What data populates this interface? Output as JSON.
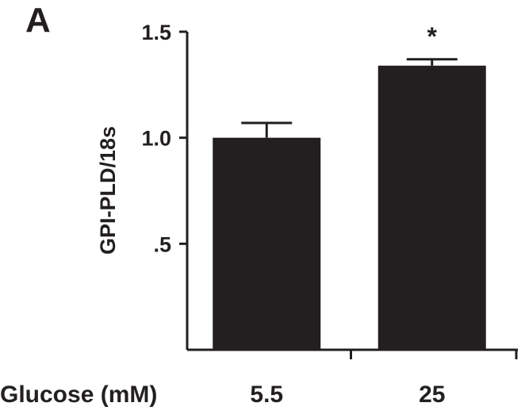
{
  "panel_label": "A",
  "chart_data": {
    "type": "bar",
    "title": "",
    "xlabel": "Glucose (mM)",
    "ylabel": "GPI-PLD/18s",
    "categories": [
      "5.5",
      "25"
    ],
    "values": [
      1.0,
      1.34
    ],
    "error": [
      0.07,
      0.03
    ],
    "annotations": [
      "",
      "*"
    ],
    "ylim": [
      0,
      1.5
    ],
    "yticks": [
      0.5,
      1.0,
      1.5
    ],
    "ytick_labels": [
      ".5",
      "1.0",
      "1.5"
    ],
    "grid": false,
    "bar_color": "#231f20"
  }
}
